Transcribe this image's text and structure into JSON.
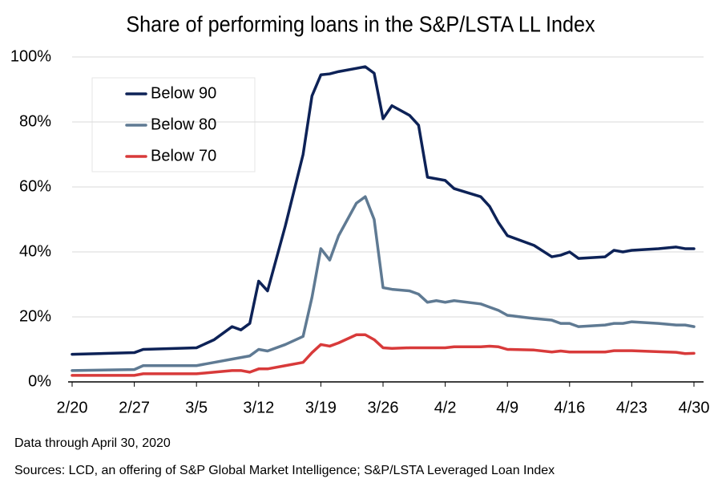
{
  "chart_data": {
    "type": "line",
    "title": "Share of performing loans in the S&P/LSTA LL Index",
    "x": [
      0,
      7,
      8,
      14,
      16,
      18,
      19,
      20,
      21,
      22,
      24,
      26,
      27,
      28,
      29,
      30,
      32,
      33,
      34,
      35,
      36,
      38,
      39,
      40,
      41,
      42,
      43,
      46,
      47,
      48,
      49,
      52,
      54,
      55,
      56,
      57,
      60,
      61,
      62,
      63,
      66,
      68,
      69,
      70
    ],
    "xlim": [
      0,
      70
    ],
    "xticks": [
      {
        "value": 0,
        "label": "2/20"
      },
      {
        "value": 7,
        "label": "2/27"
      },
      {
        "value": 14,
        "label": "3/5"
      },
      {
        "value": 21,
        "label": "3/12"
      },
      {
        "value": 28,
        "label": "3/19"
      },
      {
        "value": 35,
        "label": "3/26"
      },
      {
        "value": 42,
        "label": "4/2"
      },
      {
        "value": 49,
        "label": "4/9"
      },
      {
        "value": 56,
        "label": "4/16"
      },
      {
        "value": 63,
        "label": "4/23"
      },
      {
        "value": 70,
        "label": "4/30"
      }
    ],
    "ylim": [
      0,
      100
    ],
    "yticks": [
      {
        "value": 0,
        "label": "0%"
      },
      {
        "value": 20,
        "label": "20%"
      },
      {
        "value": 40,
        "label": "40%"
      },
      {
        "value": 60,
        "label": "60%"
      },
      {
        "value": 80,
        "label": "80%"
      },
      {
        "value": 100,
        "label": "100%"
      }
    ],
    "grid": true,
    "legend": "upper-left",
    "series": [
      {
        "name": "Below 90",
        "color": "#0d2257",
        "values": [
          8.5,
          9,
          10,
          10.5,
          13,
          17,
          16,
          18,
          31,
          28,
          48,
          70,
          88,
          94.5,
          94.8,
          95.5,
          96.5,
          97,
          95,
          81,
          85,
          82,
          79,
          63,
          62.5,
          62,
          59.5,
          57,
          54,
          49,
          45,
          42,
          38.5,
          39,
          40,
          38,
          38.5,
          40.5,
          40,
          40.5,
          41,
          41.5,
          41,
          41
        ]
      },
      {
        "name": "Below 80",
        "color": "#5f7a93",
        "values": [
          3.5,
          3.8,
          5,
          5,
          6,
          7,
          7.5,
          8,
          10,
          9.5,
          11.5,
          14,
          26,
          41,
          37.5,
          45,
          55,
          57,
          50,
          29,
          28.5,
          28,
          27,
          24.5,
          25,
          24.5,
          25,
          24,
          23,
          22,
          20.5,
          19.5,
          19,
          18,
          18,
          17,
          17.5,
          18,
          18,
          18.5,
          18,
          17.5,
          17.5,
          17
        ]
      },
      {
        "name": "Below 70",
        "color": "#d83a3a",
        "values": [
          2,
          2,
          2.5,
          2.5,
          3,
          3.5,
          3.5,
          3,
          4,
          4,
          5,
          6,
          9,
          11.5,
          11,
          12,
          14.5,
          14.5,
          13,
          10.5,
          10.3,
          10.5,
          10.5,
          10.5,
          10.5,
          10.5,
          10.8,
          10.8,
          11,
          10.8,
          10,
          9.8,
          9.2,
          9.5,
          9.2,
          9.2,
          9.2,
          9.6,
          9.6,
          9.6,
          9.3,
          9.1,
          8.7,
          8.8
        ]
      }
    ],
    "note": "Data through April 30, 2020",
    "source": "Sources: LCD,  an offering of S&P Global Market Intelligence; S&P/LSTA  Leveraged Loan Index"
  }
}
